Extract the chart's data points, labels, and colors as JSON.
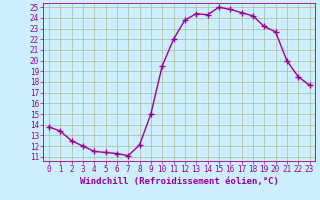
{
  "x": [
    0,
    1,
    2,
    3,
    4,
    5,
    6,
    7,
    8,
    9,
    10,
    11,
    12,
    13,
    14,
    15,
    16,
    17,
    18,
    19,
    20,
    21,
    22,
    23
  ],
  "y": [
    13.8,
    13.4,
    12.5,
    12.0,
    11.5,
    11.4,
    11.3,
    11.1,
    12.1,
    15.0,
    19.5,
    22.0,
    23.8,
    24.4,
    24.3,
    25.0,
    24.8,
    24.5,
    24.2,
    23.2,
    22.7,
    20.0,
    18.5,
    17.7
  ],
  "line_color": "#990099",
  "marker": "D",
  "marker_size": 2.0,
  "bg_color": "#cceeff",
  "grid_color": "#aabb99",
  "xlabel": "Windchill (Refroidissement éolien,°C)",
  "ylim": [
    11,
    25
  ],
  "xlim": [
    -0.5,
    23.5
  ],
  "yticks": [
    11,
    12,
    13,
    14,
    15,
    16,
    17,
    18,
    19,
    20,
    21,
    22,
    23,
    24,
    25
  ],
  "xticks": [
    0,
    1,
    2,
    3,
    4,
    5,
    6,
    7,
    8,
    9,
    10,
    11,
    12,
    13,
    14,
    15,
    16,
    17,
    18,
    19,
    20,
    21,
    22,
    23
  ],
  "tick_color": "#990099",
  "label_color": "#990099",
  "xlabel_fontsize": 6.5,
  "tick_fontsize": 5.5,
  "linewidth": 1.0
}
